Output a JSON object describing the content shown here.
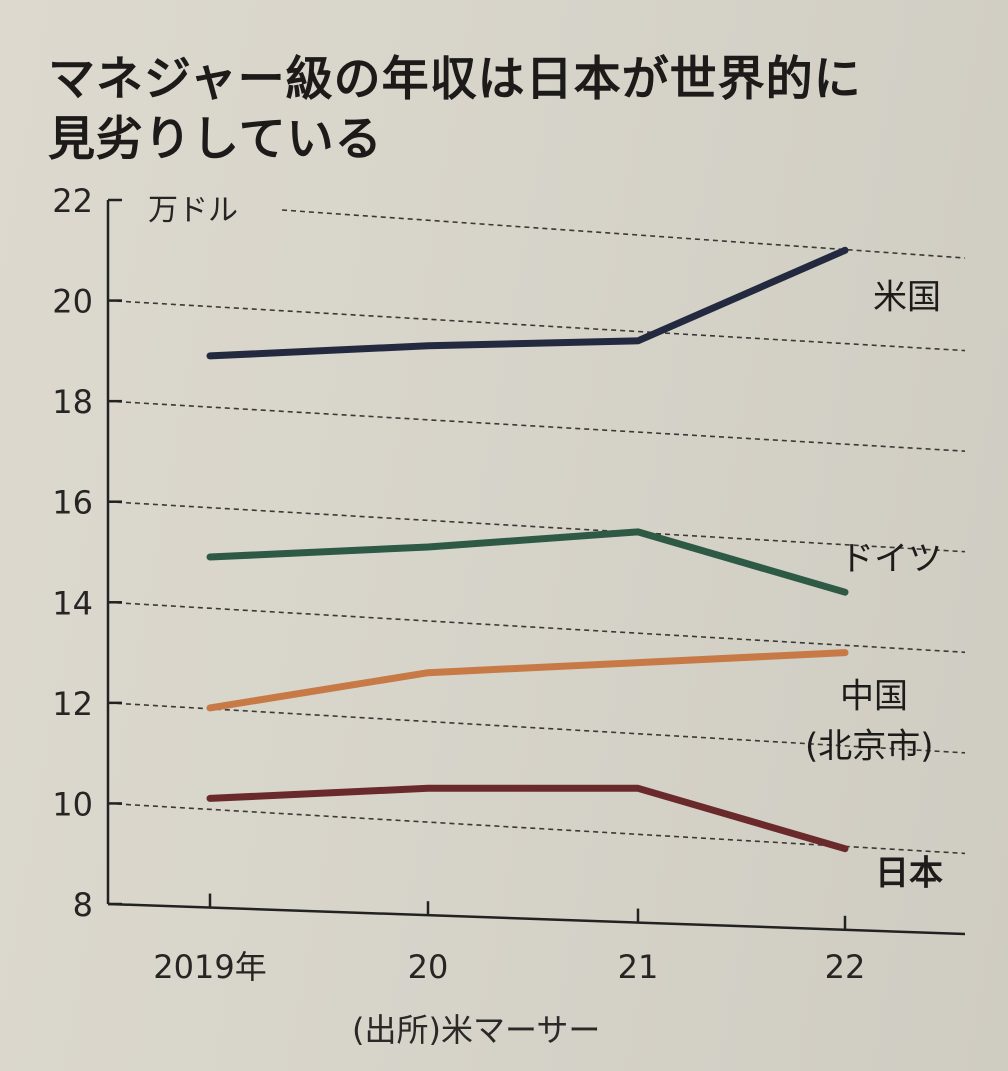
{
  "title_lines": [
    "マネジャー級の年収は日本が世界的に",
    "見劣りしている"
  ],
  "source": "(出所)米マーサー",
  "chart_data": {
    "type": "line",
    "title": "マネジャー級の年収は日本が世界的に見劣りしている",
    "unit": "万ドル",
    "x": [
      "2019年",
      "20",
      "21",
      "22"
    ],
    "ylim": [
      8,
      22
    ],
    "yticks": [
      8,
      10,
      12,
      14,
      16,
      18,
      20,
      22
    ],
    "grid": "horizontal dashed",
    "series": [
      {
        "name": "米国",
        "values": [
          18.9,
          19.1,
          19.2,
          21.0
        ],
        "color": "#232a40"
      },
      {
        "name": "ドイツ",
        "values": [
          14.9,
          15.1,
          15.4,
          14.2
        ],
        "color": "#2e5a45"
      },
      {
        "name": "中国",
        "name_line2": "(北京市)",
        "values": [
          11.9,
          12.6,
          12.8,
          13.0
        ],
        "color": "#c77a45"
      },
      {
        "name": "日本",
        "values": [
          10.1,
          10.3,
          10.3,
          9.1
        ],
        "color": "#6a2a2c"
      }
    ]
  }
}
